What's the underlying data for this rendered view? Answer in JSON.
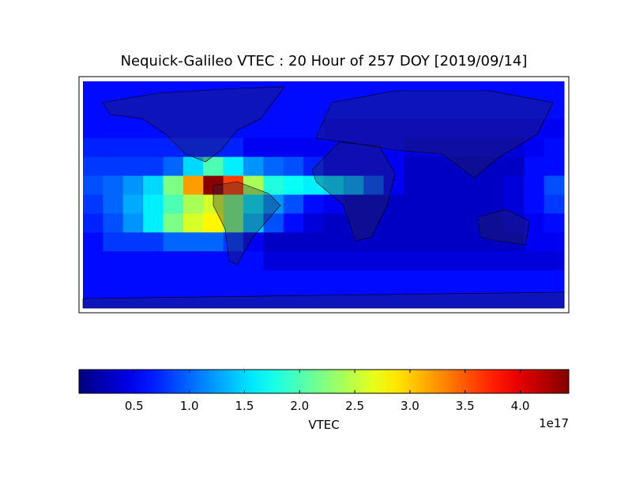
{
  "chart_data": {
    "type": "heatmap",
    "title": "Nequick-Galileo VTEC : 20 Hour of 257 DOY [2019/09/14]",
    "colorbar_label": "VTEC",
    "colorbar_offset": "1e17",
    "colormap": "jet",
    "clim": [
      0,
      4.44
    ],
    "cticks": [
      0.5,
      {
        "value": 1,
        "label": "1.0"
      },
      1.5,
      {
        "value": 2,
        "label": "2.0"
      },
      2.5,
      {
        "value": 3,
        "label": "3.0"
      },
      3.5,
      {
        "value": 4,
        "label": "4.0"
      }
    ],
    "values": [
      [
        0.6,
        0.6,
        0.6,
        0.6,
        0.6,
        0.6,
        0.6,
        0.6,
        0.6,
        0.6,
        0.6,
        0.6,
        0.6,
        0.6,
        0.6,
        0.6,
        0.6,
        0.6,
        0.6,
        0.6,
        0.6,
        0.6,
        0.6,
        0.6
      ],
      [
        0.6,
        0.6,
        0.6,
        0.6,
        0.6,
        0.6,
        0.6,
        0.6,
        0.6,
        0.6,
        0.6,
        0.6,
        0.6,
        0.6,
        0.6,
        0.6,
        0.6,
        0.6,
        0.6,
        0.6,
        0.6,
        0.6,
        0.6,
        0.6
      ],
      [
        0.6,
        0.6,
        0.6,
        0.6,
        0.6,
        0.6,
        0.6,
        0.6,
        0.6,
        0.6,
        0.6,
        0.6,
        0.5,
        0.5,
        0.5,
        0.5,
        0.5,
        0.5,
        0.5,
        0.5,
        0.5,
        0.5,
        0.5,
        0.5
      ],
      [
        0.7,
        0.7,
        0.7,
        0.7,
        0.7,
        0.7,
        0.7,
        0.7,
        0.5,
        0.5,
        0.5,
        0.5,
        0.5,
        0.5,
        0.5,
        0.5,
        0.4,
        0.4,
        0.4,
        0.4,
        0.4,
        0.4,
        0.5,
        0.6
      ],
      [
        0.8,
        0.8,
        0.8,
        0.8,
        1.0,
        1.5,
        2.0,
        1.6,
        1.2,
        1.0,
        0.9,
        0.7,
        0.5,
        0.5,
        0.5,
        0.5,
        0.3,
        0.3,
        0.3,
        0.3,
        0.3,
        0.3,
        0.6,
        0.6
      ],
      [
        0.9,
        1.0,
        1.2,
        1.5,
        2.2,
        3.2,
        4.4,
        3.6,
        2.4,
        1.8,
        1.7,
        1.6,
        1.5,
        1.3,
        0.9,
        0.5,
        0.3,
        0.3,
        0.3,
        0.3,
        0.3,
        0.4,
        0.6,
        0.9
      ],
      [
        0.8,
        1.0,
        1.3,
        1.6,
        2.0,
        2.4,
        2.6,
        2.2,
        1.6,
        1.2,
        0.9,
        0.6,
        0.5,
        0.3,
        0.3,
        0.3,
        0.3,
        0.3,
        0.3,
        0.3,
        0.3,
        0.4,
        0.6,
        0.8
      ],
      [
        0.7,
        0.9,
        1.2,
        1.6,
        2.2,
        2.6,
        2.8,
        2.2,
        1.4,
        0.9,
        0.6,
        0.4,
        0.3,
        0.3,
        0.3,
        0.3,
        0.3,
        0.3,
        0.3,
        0.3,
        0.3,
        0.4,
        0.5,
        0.6
      ],
      [
        0.6,
        0.8,
        0.8,
        0.8,
        1.0,
        1.0,
        1.0,
        0.8,
        0.5,
        0.3,
        0.3,
        0.3,
        0.3,
        0.3,
        0.3,
        0.3,
        0.3,
        0.3,
        0.3,
        0.3,
        0.3,
        0.3,
        0.5,
        0.5
      ],
      [
        0.6,
        0.6,
        0.6,
        0.6,
        0.6,
        0.6,
        0.6,
        0.6,
        0.6,
        0.4,
        0.4,
        0.4,
        0.4,
        0.4,
        0.4,
        0.4,
        0.4,
        0.4,
        0.4,
        0.4,
        0.4,
        0.4,
        0.4,
        0.4
      ],
      [
        0.6,
        0.6,
        0.6,
        0.6,
        0.6,
        0.6,
        0.6,
        0.6,
        0.6,
        0.6,
        0.6,
        0.6,
        0.6,
        0.6,
        0.6,
        0.6,
        0.6,
        0.6,
        0.6,
        0.6,
        0.6,
        0.6,
        0.6,
        0.6
      ],
      [
        0.6,
        0.6,
        0.6,
        0.6,
        0.6,
        0.6,
        0.6,
        0.6,
        0.6,
        0.6,
        0.6,
        0.6,
        0.6,
        0.6,
        0.6,
        0.6,
        0.6,
        0.6,
        0.6,
        0.6,
        0.6,
        0.6,
        0.6,
        0.6
      ]
    ]
  }
}
